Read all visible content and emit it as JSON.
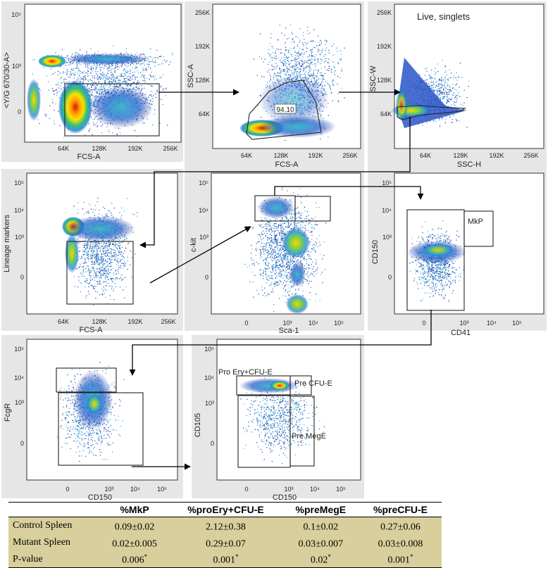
{
  "chart_data": [
    {
      "id": "p1",
      "type": "scatter",
      "style": "flow-density",
      "xlabel": "FCS-A",
      "ylabel": "<Y/G 670/30-A>",
      "xticks": [
        "64K",
        "128K",
        "192K",
        "256K"
      ],
      "yticks": [
        "10⁵",
        "10³",
        "0"
      ],
      "gates": [],
      "note": ""
    },
    {
      "id": "p2",
      "type": "scatter",
      "style": "flow-density",
      "xlabel": "FCS-A",
      "ylabel": "SSC-A",
      "xticks": [
        "64K",
        "128K",
        "192K",
        "256K"
      ],
      "yticks": [
        "256K",
        "192K",
        "128K",
        "64K"
      ],
      "gates": [
        {
          "label": "94.10"
        }
      ],
      "note": ""
    },
    {
      "id": "p3",
      "type": "scatter",
      "style": "flow-density",
      "xlabel": "SSC-H",
      "ylabel": "SSC-W",
      "xticks": [
        "64K",
        "128K",
        "192K",
        "256K"
      ],
      "yticks": [
        "256K",
        "192K",
        "128K",
        "64K"
      ],
      "gates": [],
      "note": "Live, singlets"
    },
    {
      "id": "p4",
      "type": "scatter",
      "style": "flow-density",
      "xlabel": "FCS-A",
      "ylabel": "Lineage markers",
      "xticks": [
        "64K",
        "128K",
        "192K",
        "256K"
      ],
      "yticks": [
        "10⁵",
        "10⁴",
        "10³",
        "0"
      ],
      "gates": [],
      "note": ""
    },
    {
      "id": "p5",
      "type": "scatter",
      "style": "flow-density",
      "xlabel": "Sca-1",
      "ylabel": "c-kit",
      "xticks": [
        "0",
        "10³",
        "10⁴",
        "10⁵"
      ],
      "yticks": [
        "10⁵",
        "10⁴",
        "10³",
        "0"
      ],
      "gates": [],
      "note": ""
    },
    {
      "id": "p6",
      "type": "scatter",
      "style": "flow-density",
      "xlabel": "CD41",
      "ylabel": "CD150",
      "xticks": [
        "0",
        "10³",
        "10⁴",
        "10⁵"
      ],
      "yticks": [
        "10⁵",
        "10⁴",
        "10³",
        "0"
      ],
      "gates": [
        {
          "label": "MkP"
        }
      ],
      "note": ""
    },
    {
      "id": "p7",
      "type": "scatter",
      "style": "flow-density",
      "xlabel": "CD150",
      "ylabel": "FcgR",
      "xticks": [
        "0",
        "10³",
        "10⁴",
        "10⁵"
      ],
      "yticks": [
        "10⁵",
        "10⁴",
        "10³",
        "0"
      ],
      "gates": [],
      "note": ""
    },
    {
      "id": "p8",
      "type": "scatter",
      "style": "flow-density",
      "xlabel": "CD150",
      "ylabel": "CD105",
      "xticks": [
        "0",
        "10³",
        "10⁴",
        "10⁵"
      ],
      "yticks": [
        "10⁵",
        "10⁴",
        "10³",
        "0"
      ],
      "gates": [
        {
          "label": "Pro Ery+CFU-E"
        },
        {
          "label": "Pre CFU-E"
        },
        {
          "label": "Pre MegE"
        }
      ],
      "note": ""
    }
  ],
  "table": {
    "headers": [
      "",
      "%MkP",
      "%proEry+CFU-E",
      "%preMegE",
      "%preCFU-E"
    ],
    "rows": [
      {
        "label": "Control Spleen",
        "cells": [
          {
            "v": "0.09±0.02",
            "sup": ""
          },
          {
            "v": "2.12±0.38",
            "sup": ""
          },
          {
            "v": "0.1±0.02",
            "sup": ""
          },
          {
            "v": "0.27±0.06",
            "sup": ""
          }
        ]
      },
      {
        "label": "Mutant Spleen",
        "cells": [
          {
            "v": "0.02±0.005",
            "sup": ""
          },
          {
            "v": "0.29±0.07",
            "sup": ""
          },
          {
            "v": "0.03±0.007",
            "sup": ""
          },
          {
            "v": "0.03±0.008",
            "sup": ""
          }
        ]
      },
      {
        "label": "P-value",
        "cells": [
          {
            "v": "0.006",
            "sup": "*"
          },
          {
            "v": "0.001",
            "sup": "*"
          },
          {
            "v": "0.02",
            "sup": "*"
          },
          {
            "v": "0.001",
            "sup": "*"
          }
        ]
      }
    ]
  }
}
